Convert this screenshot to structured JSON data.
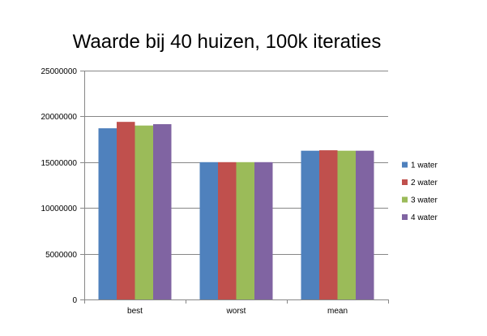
{
  "chart_data": {
    "type": "bar",
    "title": "Waarde bij 40 huizen, 100k iteraties",
    "xlabel": "",
    "ylabel": "",
    "categories": [
      "best",
      "worst",
      "mean"
    ],
    "series": [
      {
        "name": "1 water",
        "color": "#4F81BD",
        "values": [
          18700000,
          15000000,
          16250000
        ]
      },
      {
        "name": "2 water",
        "color": "#C0504D",
        "values": [
          19400000,
          15000000,
          16300000
        ]
      },
      {
        "name": "3 water",
        "color": "#9BBB59",
        "values": [
          19000000,
          15000000,
          16250000
        ]
      },
      {
        "name": "4 water",
        "color": "#8064A2",
        "values": [
          19150000,
          15000000,
          16250000
        ]
      }
    ],
    "ylim": [
      0,
      25000000
    ],
    "yticks": [
      "0",
      "5000000",
      "10000000",
      "15000000",
      "20000000",
      "25000000"
    ],
    "grid": true,
    "legend_position": "right"
  }
}
